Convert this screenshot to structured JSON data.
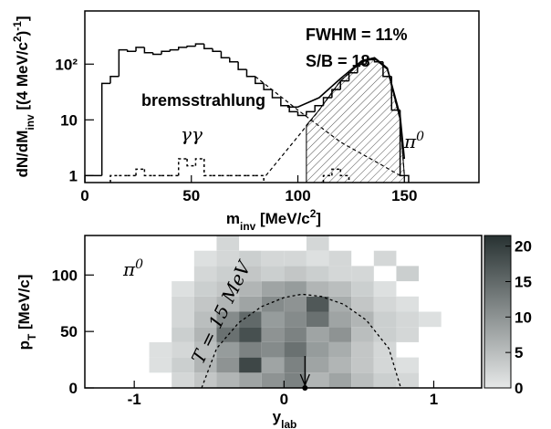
{
  "chart_data": [
    {
      "type": "histogram",
      "ylabel": [
        {
          "text": "dN/dM"
        },
        {
          "text": "inv",
          "shift": "sub"
        },
        {
          "text": " [(4 MeV/c"
        },
        {
          "text": "2",
          "shift": "super"
        },
        {
          "text": ")"
        },
        {
          "text": "-1",
          "shift": "super"
        },
        {
          "text": "]"
        }
      ],
      "xlabel": [
        {
          "text": "m"
        },
        {
          "text": "inv",
          "shift": "sub"
        },
        {
          "text": " [MeV/c"
        },
        {
          "text": "2",
          "shift": "super"
        },
        {
          "text": "]"
        }
      ],
      "annotations": [
        "FWHM = 11%",
        "S/B = 18",
        "bremsstrahlung",
        "γγ"
      ],
      "peak_label": [
        {
          "text": "π"
        },
        {
          "text": "0",
          "shift": "super"
        }
      ],
      "xlim": [
        0,
        185
      ],
      "ylim": [
        0.75,
        900
      ],
      "log_y": true,
      "xticks": [
        0,
        50,
        100,
        150
      ],
      "yticks": [
        1,
        10,
        {
          "value": 100,
          "label": "10²"
        }
      ],
      "bins": [
        0,
        4,
        8,
        12,
        16,
        20,
        24,
        28,
        32,
        36,
        40,
        44,
        48,
        52,
        56,
        60,
        64,
        68,
        72,
        76,
        80,
        84,
        88,
        92,
        96,
        100,
        104,
        108,
        112,
        116,
        120,
        124,
        128,
        132,
        136,
        140,
        144,
        148,
        152
      ],
      "histograms": [
        {
          "style": "solid",
          "color": "#000000",
          "values": [
            1,
            1,
            45,
            60,
            180,
            170,
            200,
            160,
            150,
            170,
            180,
            200,
            210,
            230,
            190,
            170,
            130,
            110,
            80,
            60,
            45,
            35,
            25,
            18,
            14,
            12,
            14,
            18,
            25,
            35,
            50,
            70,
            100,
            120,
            110,
            60,
            15,
            1
          ]
        },
        {
          "style": "dotted",
          "color": "#000000",
          "values": [
            null,
            null,
            null,
            1,
            1,
            1,
            1.3,
            1,
            1,
            1,
            1,
            2,
            1.5,
            2,
            1,
            1,
            1,
            1,
            1,
            1,
            1,
            null,
            null,
            null,
            null,
            null,
            null,
            null,
            1,
            1.3,
            1,
            null,
            null,
            null,
            null,
            null,
            null,
            null
          ]
        }
      ],
      "curves": [
        {
          "style": "dashed",
          "x": [
            80,
            100,
            120,
            140,
            148
          ],
          "y": [
            60,
            15,
            4,
            1.5,
            1
          ]
        },
        {
          "style": "dashed",
          "x": [
            85,
            100,
            110,
            120,
            130,
            136,
            142,
            148,
            150
          ],
          "y": [
            1,
            5,
            15,
            50,
            110,
            125,
            80,
            10,
            1
          ]
        },
        {
          "style": "solid",
          "x": [
            95,
            100,
            110,
            120,
            130,
            136,
            142,
            148,
            150
          ],
          "y": [
            17,
            17,
            25,
            55,
            115,
            130,
            85,
            12,
            2
          ]
        },
        {
          "style": "hatched",
          "x": [
            104,
            110,
            120,
            130,
            136,
            142,
            148,
            150
          ],
          "y": [
            8,
            15,
            50,
            110,
            125,
            80,
            10,
            1
          ]
        }
      ]
    },
    {
      "type": "heatmap",
      "ylabel": [
        {
          "text": "p"
        },
        {
          "text": "T",
          "shift": "sub"
        },
        {
          "text": " [MeV/c]"
        }
      ],
      "xlabel": [
        {
          "text": "y"
        },
        {
          "text": "lab",
          "shift": "sub"
        }
      ],
      "label": [
        {
          "text": "π"
        },
        {
          "text": "0",
          "shift": "super"
        }
      ],
      "curve_label": "T = 15 MeV",
      "xlim": [
        -1.33,
        1.32
      ],
      "ylim": [
        0,
        135
      ],
      "xticks": [
        -1,
        0,
        1
      ],
      "yticks": [
        0,
        50,
        100
      ],
      "x_edges": [
        -0.9,
        -0.75,
        -0.6,
        -0.45,
        -0.3,
        -0.15,
        0,
        0.15,
        0.3,
        0.45,
        0.6,
        0.75,
        0.9,
        1.05
      ],
      "y_edges": [
        0,
        13.5,
        27,
        40.5,
        54,
        67.5,
        81,
        94.5,
        108,
        121.5,
        135
      ],
      "z": [
        [
          null,
          2,
          4,
          6,
          8,
          10,
          12,
          6,
          8,
          5,
          3,
          2,
          null
        ],
        [
          1,
          3,
          6,
          10,
          19,
          8,
          12,
          8,
          6,
          4,
          2,
          1,
          null
        ],
        [
          1,
          2,
          5,
          9,
          12,
          11,
          14,
          9,
          7,
          4,
          2,
          null,
          null
        ],
        [
          null,
          3,
          6,
          14,
          18,
          10,
          12,
          8,
          10,
          5,
          3,
          2,
          null
        ],
        [
          null,
          2,
          5,
          11,
          15,
          9,
          11,
          14,
          8,
          6,
          3,
          2,
          1
        ],
        [
          null,
          2,
          4,
          6,
          8,
          11,
          10,
          17,
          7,
          4,
          2,
          1,
          null
        ],
        [
          null,
          1,
          3,
          4,
          6,
          8,
          9,
          6,
          5,
          3,
          1,
          null,
          null
        ],
        [
          null,
          null,
          2,
          3,
          4,
          3,
          4,
          3,
          2,
          2,
          null,
          3,
          null
        ],
        [
          null,
          null,
          1,
          2,
          3,
          2,
          2,
          1,
          2,
          null,
          2,
          null,
          null
        ],
        [
          null,
          null,
          null,
          2,
          null,
          null,
          null,
          2,
          null,
          null,
          null,
          null,
          null
        ]
      ],
      "zlim": [
        0,
        21.5
      ],
      "zticks": [
        0,
        5,
        10,
        15,
        20
      ],
      "colors": [
        "#e6e8e8",
        "#283232"
      ],
      "curve": {
        "x": [
          -0.55,
          -0.45,
          -0.3,
          -0.15,
          0,
          0.12,
          0.25,
          0.4,
          0.55,
          0.7,
          0.78
        ],
        "y": [
          0,
          35,
          58,
          72,
          80,
          83,
          81,
          74,
          60,
          35,
          0
        ]
      },
      "arrow_x": 0.14
    }
  ]
}
